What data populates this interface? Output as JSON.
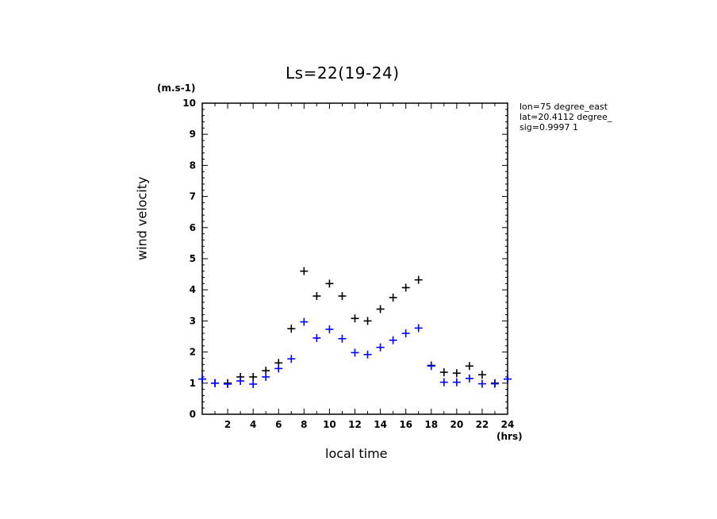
{
  "chart_data": {
    "type": "scatter",
    "title": "Ls=22(19-24)",
    "xlabel": "local time",
    "ylabel": "wind velocity",
    "x_unit": "(hrs)",
    "y_unit": "(m.s-1)",
    "xlim": [
      0,
      24
    ],
    "ylim": [
      0,
      10
    ],
    "x_ticks": [
      2,
      4,
      6,
      8,
      10,
      12,
      14,
      16,
      18,
      20,
      22,
      24
    ],
    "y_ticks": [
      0,
      1,
      2,
      3,
      4,
      5,
      6,
      7,
      8,
      9,
      10
    ],
    "grid": false,
    "annotations": [
      "lon=75 degree_east",
      "lat=20.4112 degree_",
      "sig=0.9997 1"
    ],
    "series": [
      {
        "color": "#000000",
        "x": [
          0,
          1,
          2,
          3,
          4,
          5,
          6,
          7,
          8,
          9,
          10,
          11,
          12,
          13,
          14,
          15,
          16,
          17,
          18,
          19,
          20,
          21,
          22,
          23,
          24
        ],
        "y": [
          1.13,
          1.0,
          1.0,
          1.2,
          1.2,
          1.4,
          1.65,
          2.75,
          4.6,
          3.8,
          4.2,
          3.8,
          3.08,
          3.0,
          3.38,
          3.75,
          4.07,
          4.32,
          1.57,
          1.35,
          1.32,
          1.55,
          1.27,
          1.0,
          1.13
        ]
      },
      {
        "color": "#0000ff",
        "x": [
          0,
          1,
          2,
          3,
          4,
          5,
          6,
          7,
          8,
          9,
          10,
          11,
          12,
          13,
          14,
          15,
          16,
          17,
          18,
          19,
          20,
          21,
          22,
          23,
          24
        ],
        "y": [
          1.13,
          1.0,
          0.97,
          1.07,
          0.97,
          1.2,
          1.47,
          1.78,
          2.97,
          2.45,
          2.73,
          2.43,
          1.98,
          1.92,
          2.15,
          2.38,
          2.6,
          2.77,
          1.55,
          1.03,
          1.03,
          1.15,
          0.98,
          0.98,
          1.13
        ]
      }
    ]
  }
}
